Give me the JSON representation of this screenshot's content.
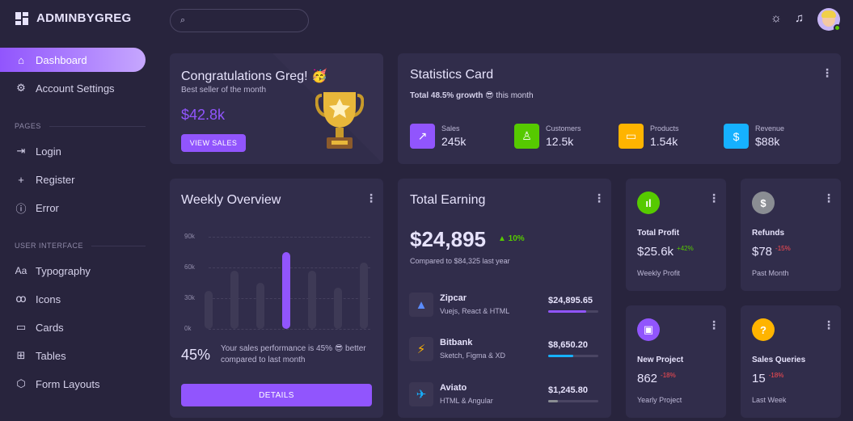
{
  "brand": {
    "name": "ADMINBYGREG"
  },
  "search": {
    "placeholder": ""
  },
  "sidebar": {
    "items": [
      {
        "label": "Dashboard",
        "icon": "home-icon",
        "active": true
      },
      {
        "label": "Account Settings",
        "icon": "account-cog-icon"
      },
      {
        "label": "Login",
        "icon": "login-icon"
      },
      {
        "label": "Register",
        "icon": "account-plus-icon"
      },
      {
        "label": "Error",
        "icon": "alert-circle-icon"
      },
      {
        "label": "Typography",
        "icon": "format-letter-case-icon"
      },
      {
        "label": "Icons",
        "icon": "google-circles-icon"
      },
      {
        "label": "Cards",
        "icon": "credit-card-icon"
      },
      {
        "label": "Tables",
        "icon": "table-icon"
      },
      {
        "label": "Form Layouts",
        "icon": "cube-icon"
      }
    ],
    "sections": [
      "PAGES",
      "USER INTERFACE"
    ]
  },
  "header": {
    "icons": [
      "sun-icon",
      "bell-icon",
      "avatar"
    ]
  },
  "congrats": {
    "title": "Congratulations Greg! 🥳",
    "subtitle": "Best seller of the month",
    "amount": "$42.8k",
    "button": "VIEW SALES"
  },
  "statistics": {
    "title": "Statistics Card",
    "growth_bold": "Total 48.5% growth",
    "growth_rest": "😎 this month",
    "items": [
      {
        "label": "Sales",
        "value": "245k",
        "color": "#9155fd",
        "icon": "trending-up-icon"
      },
      {
        "label": "Customers",
        "value": "12.5k",
        "color": "#56ca00",
        "icon": "account-icon"
      },
      {
        "label": "Products",
        "value": "1.54k",
        "color": "#ffb400",
        "icon": "cellphone-link-icon"
      },
      {
        "label": "Revenue",
        "value": "$88k",
        "color": "#16b1ff",
        "icon": "currency-usd-icon"
      }
    ]
  },
  "weekly": {
    "title": "Weekly Overview",
    "percent": "45%",
    "message": "Your sales performance is 45% 😎 better compared to last month",
    "button": "DETAILS",
    "chart_data": {
      "type": "bar",
      "categories": [
        "",
        "",
        "",
        "",
        "",
        "",
        ""
      ],
      "values": [
        37,
        57,
        45,
        75,
        57,
        40,
        65
      ],
      "ylim": [
        0,
        90
      ],
      "yticks": [
        "90k",
        "60k",
        "30k",
        "0k"
      ],
      "highlight_index": 3,
      "grid": true
    }
  },
  "earning": {
    "title": "Total Earning",
    "amount": "$24,895",
    "change": "▲ 10%",
    "compared": "Compared to $84,325 last year",
    "rows": [
      {
        "name": "Zipcar",
        "desc": "Vuejs, React & HTML",
        "amount": "$24,895.65",
        "progress": 0.75,
        "color": "#9155fd",
        "icon": "zipcar-logo-icon"
      },
      {
        "name": "Bitbank",
        "desc": "Sketch, Figma & XD",
        "amount": "$8,650.20",
        "progress": 0.5,
        "color": "#16b1ff",
        "icon": "bitbank-logo-icon"
      },
      {
        "name": "Aviato",
        "desc": "HTML & Angular",
        "amount": "$1,245.80",
        "progress": 0.2,
        "color": "#8a8d93",
        "icon": "aviato-logo-icon"
      }
    ]
  },
  "small_cards": [
    {
      "title": "Total Profit",
      "value": "$25.6k",
      "change": "+42%",
      "change_color": "#56ca00",
      "sub": "Weekly Profit",
      "icon": "poll-icon",
      "color": "#56ca00"
    },
    {
      "title": "Refunds",
      "value": "$78",
      "change": "-15%",
      "change_color": "#ff4c51",
      "sub": "Past Month",
      "icon": "currency-usd-icon",
      "color": "#8a8d93"
    },
    {
      "title": "New Project",
      "value": "862",
      "change": "-18%",
      "change_color": "#ff4c51",
      "sub": "Yearly Project",
      "icon": "briefcase-icon",
      "color": "#9155fd"
    },
    {
      "title": "Sales Queries",
      "value": "15",
      "change": "-18%",
      "change_color": "#ff4c51",
      "sub": "Last Week",
      "icon": "help-circle-icon",
      "color": "#ffb400"
    }
  ]
}
